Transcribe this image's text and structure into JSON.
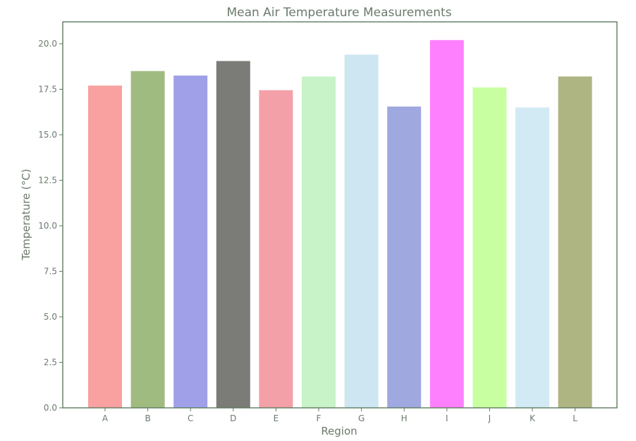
{
  "chart_data": {
    "type": "bar",
    "title": "Mean Air Temperature Measurements",
    "xlabel": "Region",
    "ylabel": "Temperature ($^\\circ$C)",
    "ylabel_display": "Temperature (°C)",
    "categories": [
      "A",
      "B",
      "C",
      "D",
      "E",
      "F",
      "G",
      "H",
      "I",
      "J",
      "K",
      "L"
    ],
    "values": [
      17.7,
      18.5,
      18.25,
      19.05,
      17.45,
      18.2,
      19.4,
      16.55,
      20.2,
      17.6,
      16.5,
      18.2
    ],
    "colors": [
      "#f9a0a0",
      "#9fbb80",
      "#9fa0e8",
      "#7b7b78",
      "#f4a0a8",
      "#c8f2c8",
      "#cde6f2",
      "#a0a8e0",
      "#ff80ff",
      "#c8ffa0",
      "#d2eaf4",
      "#aeb482"
    ],
    "ylim": [
      0,
      21.2
    ],
    "yticks": [
      "0.0",
      "2.5",
      "5.0",
      "7.5",
      "10.0",
      "12.5",
      "15.0",
      "17.5",
      "20.0"
    ],
    "grid": false,
    "legend": "none"
  }
}
